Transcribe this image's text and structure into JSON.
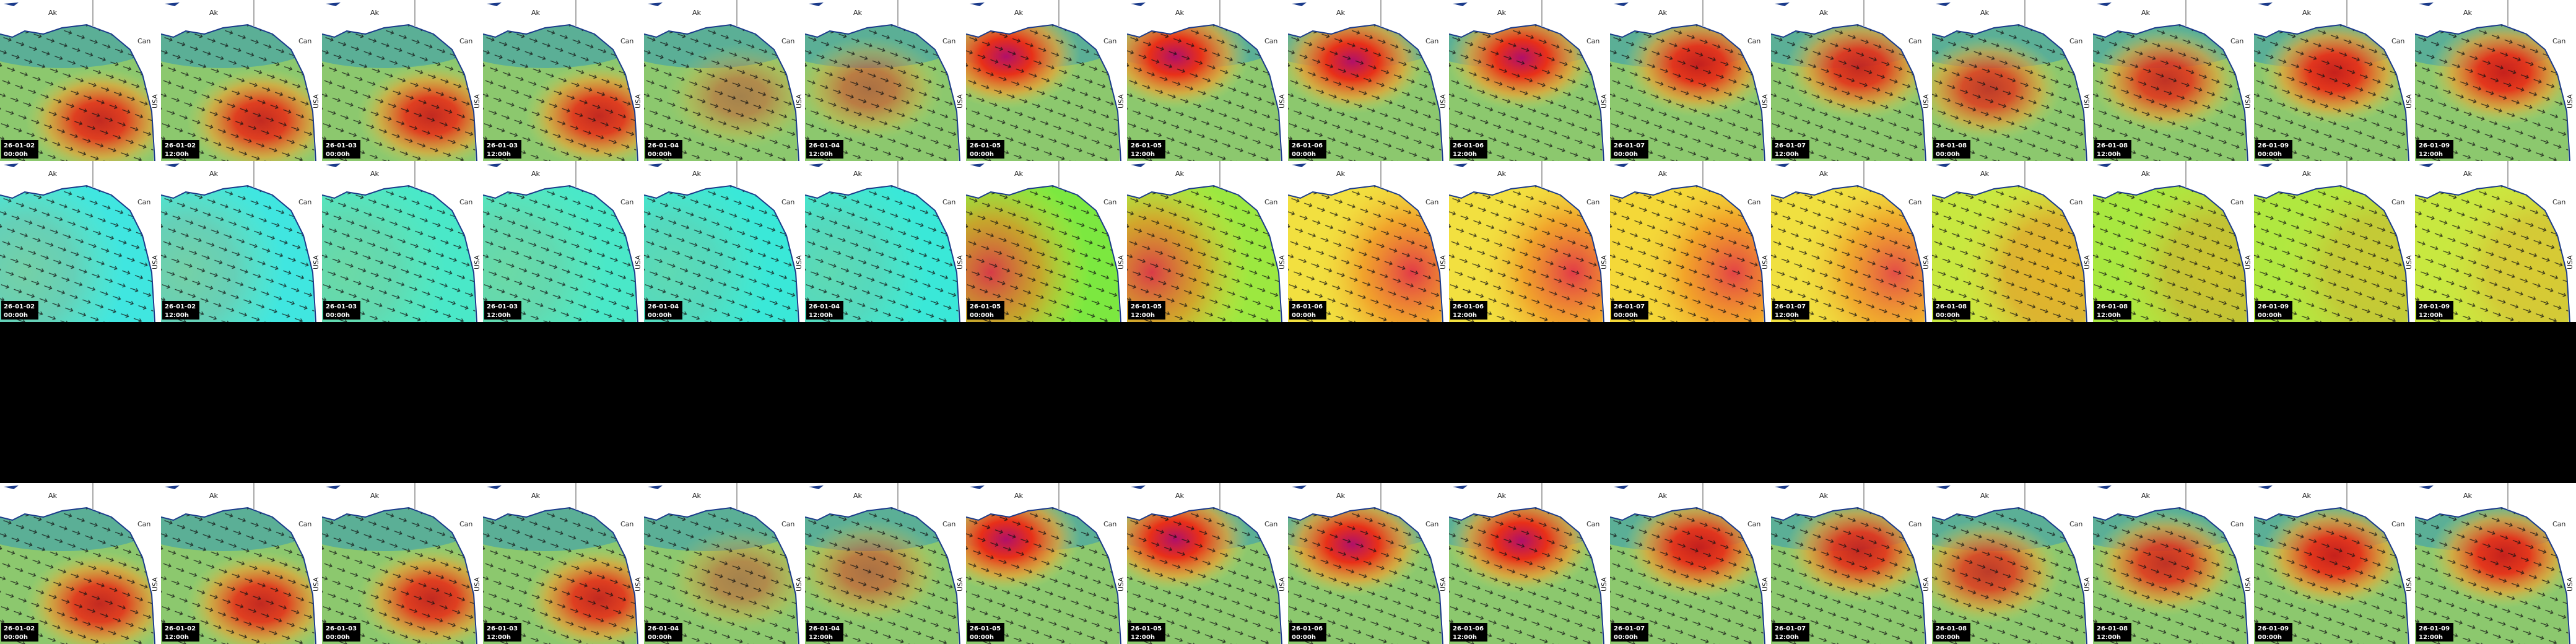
{
  "labels": {
    "ak": "Ak",
    "can": "Can",
    "usa": "USA"
  },
  "rows": [
    {
      "tiles": [
        {
          "date": "26-01-02",
          "time": "00:00h"
        },
        {
          "date": "26-01-02",
          "time": "12:00h"
        },
        {
          "date": "26-01-03",
          "time": "00:00h"
        },
        {
          "date": "26-01-03",
          "time": "12:00h"
        },
        {
          "date": "26-01-04",
          "time": "00:00h"
        },
        {
          "date": "26-01-04",
          "time": "12:00h"
        },
        {
          "date": "26-01-05",
          "time": "00:00h"
        },
        {
          "date": "26-01-05",
          "time": "12:00h"
        },
        {
          "date": "26-01-06",
          "time": "00:00h"
        },
        {
          "date": "26-01-06",
          "time": "12:00h"
        },
        {
          "date": "26-01-07",
          "time": "00:00h"
        },
        {
          "date": "26-01-07",
          "time": "12:00h"
        },
        {
          "date": "26-01-08",
          "time": "00:00h"
        },
        {
          "date": "26-01-08",
          "time": "12:00h"
        },
        {
          "date": "26-01-09",
          "time": "00:00h"
        },
        {
          "date": "26-01-09",
          "time": "12:00h"
        }
      ]
    },
    {
      "tiles": [
        {
          "date": "26-01-02",
          "time": "00:00h"
        },
        {
          "date": "26-01-02",
          "time": "12:00h"
        },
        {
          "date": "26-01-03",
          "time": "00:00h"
        },
        {
          "date": "26-01-03",
          "time": "12:00h"
        },
        {
          "date": "26-01-04",
          "time": "00:00h"
        },
        {
          "date": "26-01-04",
          "time": "12:00h"
        },
        {
          "date": "26-01-05",
          "time": "00:00h"
        },
        {
          "date": "26-01-05",
          "time": "12:00h"
        },
        {
          "date": "26-01-06",
          "time": "00:00h"
        },
        {
          "date": "26-01-06",
          "time": "12:00h"
        },
        {
          "date": "26-01-07",
          "time": "00:00h"
        },
        {
          "date": "26-01-07",
          "time": "12:00h"
        },
        {
          "date": "26-01-08",
          "time": "00:00h"
        },
        {
          "date": "26-01-08",
          "time": "12:00h"
        },
        {
          "date": "26-01-09",
          "time": "00:00h"
        },
        {
          "date": "26-01-09",
          "time": "12:00h"
        }
      ]
    },
    {
      "tiles": []
    },
    {
      "tiles": [
        {
          "date": "26-01-02",
          "time": "00:00h"
        },
        {
          "date": "26-01-02",
          "time": "12:00h"
        },
        {
          "date": "26-01-03",
          "time": "00:00h"
        },
        {
          "date": "26-01-03",
          "time": "12:00h"
        },
        {
          "date": "26-01-04",
          "time": "00:00h"
        },
        {
          "date": "26-01-04",
          "time": "12:00h"
        },
        {
          "date": "26-01-05",
          "time": "00:00h"
        },
        {
          "date": "26-01-05",
          "time": "12:00h"
        },
        {
          "date": "26-01-06",
          "time": "00:00h"
        },
        {
          "date": "26-01-06",
          "time": "12:00h"
        },
        {
          "date": "26-01-07",
          "time": "00:00h"
        },
        {
          "date": "26-01-07",
          "time": "12:00h"
        },
        {
          "date": "26-01-08",
          "time": "00:00h"
        },
        {
          "date": "26-01-08",
          "time": "12:00h"
        },
        {
          "date": "26-01-09",
          "time": "00:00h"
        },
        {
          "date": "26-01-09",
          "time": "12:00h"
        }
      ]
    }
  ]
}
